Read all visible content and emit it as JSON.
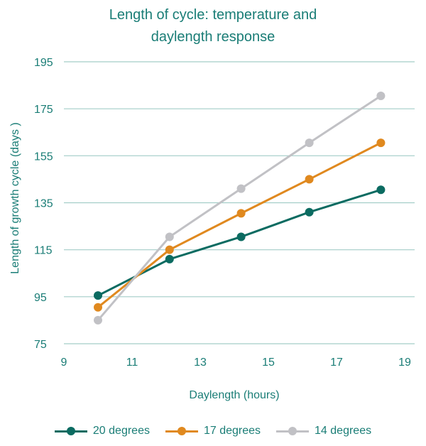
{
  "chart_data": {
    "type": "line",
    "title": "Length of cycle: temperature and daylength response",
    "title_lines": [
      "Length of cycle: temperature and",
      "daylength response"
    ],
    "xlabel": "Daylength (hours)",
    "ylabel": "Length of growth cycle (days )",
    "xlim": [
      9,
      19
    ],
    "ylim": [
      75,
      195
    ],
    "xticks": [
      "9",
      "11",
      "13",
      "15",
      "17",
      "19"
    ],
    "yticks": [
      "75",
      "95",
      "115",
      "135",
      "155",
      "175",
      "195"
    ],
    "grid": "horizontal",
    "legend_position": "bottom",
    "x": [
      10,
      12.1,
      14.2,
      16.2,
      18.3
    ],
    "series": [
      {
        "name": "20 degrees",
        "color": "#0b6b61",
        "values": [
          95.5,
          111,
          120.5,
          131,
          140.5
        ]
      },
      {
        "name": "17 degrees",
        "color": "#e0891f",
        "values": [
          90.5,
          115,
          130.5,
          145,
          160.5
        ]
      },
      {
        "name": "14 degrees",
        "color": "#c1c1c5",
        "values": [
          85,
          120.5,
          141,
          160.5,
          180.5
        ]
      }
    ]
  }
}
